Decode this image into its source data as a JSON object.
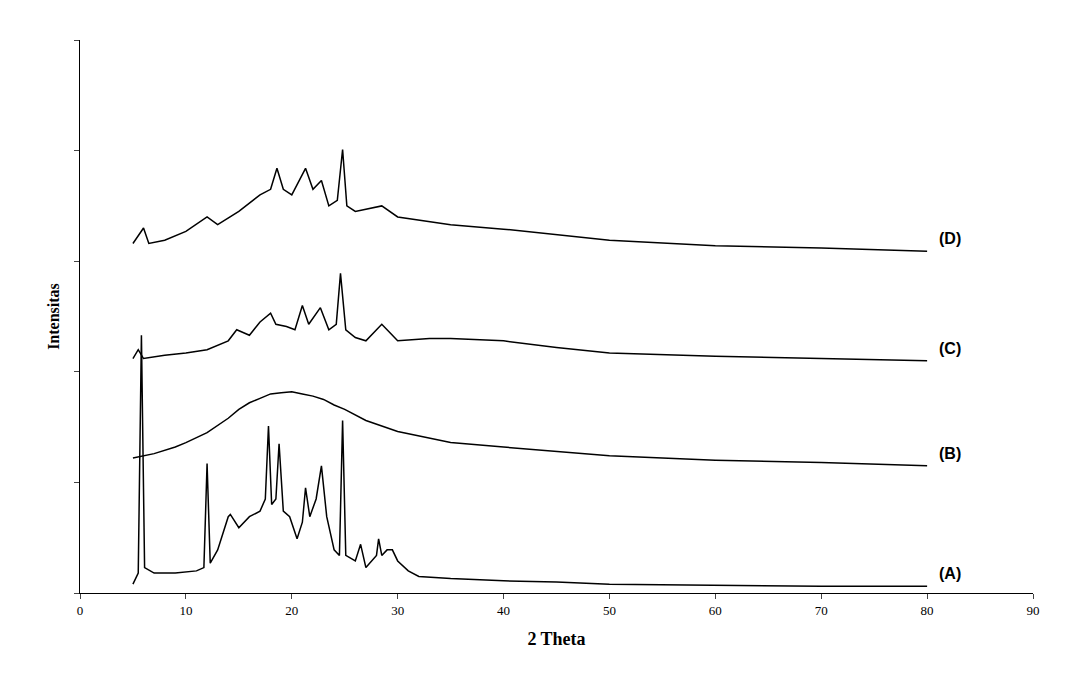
{
  "chart_data": {
    "type": "line",
    "x_label": "2 Theta",
    "y_label": "Intensitas",
    "xlim": [
      0,
      90
    ],
    "xticks": [
      0,
      10,
      20,
      30,
      40,
      50,
      60,
      70,
      80,
      90
    ],
    "ylim": [
      0,
      500
    ],
    "yticks": [
      0,
      100,
      200,
      300,
      400,
      500
    ],
    "tick_labels": "x",
    "grid": false,
    "series": [
      {
        "name": "(A)",
        "color": "#000000",
        "x": [
          5,
          5.5,
          5.8,
          6.1,
          7,
          9,
          11,
          11.7,
          12,
          12.3,
          13,
          14,
          14.2,
          15,
          16,
          17,
          17.5,
          17.8,
          18.1,
          18.5,
          18.8,
          19.2,
          19.8,
          20.5,
          21,
          21.3,
          21.7,
          22.3,
          22.8,
          23.3,
          24,
          24.5,
          24.8,
          25.1,
          26,
          26.5,
          27,
          28,
          28.2,
          28.5,
          29,
          29.5,
          30,
          31,
          32,
          35,
          40,
          45,
          50,
          60,
          70,
          80
        ],
        "values": [
          8,
          18,
          233,
          23,
          18,
          18,
          20,
          23,
          117,
          27,
          39,
          69,
          71,
          59,
          69,
          74,
          85,
          151,
          80,
          85,
          135,
          74,
          69,
          49,
          64,
          95,
          69,
          85,
          115,
          69,
          39,
          34,
          156,
          34,
          29,
          44,
          23,
          34,
          49,
          34,
          39,
          39,
          29,
          20,
          15,
          13,
          11,
          10,
          8,
          7,
          6,
          6
        ]
      },
      {
        "name": "(B)",
        "color": "#000000",
        "x": [
          5,
          7,
          9,
          10,
          12,
          14,
          15,
          16,
          17,
          18,
          19,
          20,
          21,
          22,
          23,
          24,
          25,
          27,
          30,
          33,
          35,
          40,
          45,
          50,
          55,
          60,
          70,
          80
        ],
        "values": [
          122,
          126,
          132,
          136,
          145,
          158,
          166,
          172,
          176,
          180,
          181,
          182,
          180,
          178,
          175,
          170,
          166,
          156,
          146,
          140,
          136,
          132,
          128,
          124,
          122,
          120,
          118,
          115
        ]
      },
      {
        "name": "(C)",
        "color": "#000000",
        "x": [
          5,
          5.5,
          6,
          8,
          10,
          12,
          14,
          14.8,
          16,
          17,
          18,
          18.5,
          19.5,
          20.3,
          21,
          21.6,
          22.7,
          23.5,
          24.2,
          24.6,
          25.1,
          26,
          27,
          28.5,
          29,
          30,
          33,
          35,
          40,
          45,
          50,
          60,
          70,
          80
        ],
        "values": [
          212,
          220,
          212,
          215,
          217,
          220,
          228,
          238,
          233,
          245,
          253,
          243,
          241,
          238,
          260,
          243,
          258,
          238,
          243,
          289,
          238,
          231,
          228,
          243,
          238,
          228,
          230,
          230,
          228,
          222,
          217,
          214,
          212,
          210
        ]
      },
      {
        "name": "(D)",
        "color": "#000000",
        "x": [
          5,
          6,
          6.5,
          8,
          10,
          12,
          13,
          15,
          17,
          18,
          18.6,
          19.2,
          20,
          21.3,
          22,
          22.8,
          23.5,
          24.3,
          24.8,
          25.2,
          26,
          28.5,
          30,
          35,
          40,
          45,
          50,
          60,
          70,
          80
        ],
        "values": [
          316,
          330,
          316,
          319,
          327,
          340,
          333,
          345,
          360,
          365,
          384,
          365,
          360,
          384,
          365,
          373,
          350,
          355,
          401,
          350,
          345,
          350,
          340,
          333,
          329,
          324,
          319,
          314,
          312,
          309
        ]
      }
    ]
  }
}
